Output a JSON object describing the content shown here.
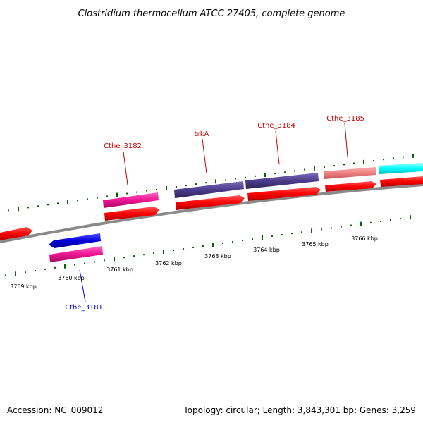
{
  "title": "Clostridium thermocellum ATCC 27405, complete genome",
  "footer": {
    "accession": "Accession: NC_009012",
    "summary": "Topology: circular; Length: 3,843,301 bp; Genes: 3,259"
  },
  "positions": [
    {
      "label": "3759 kbp"
    },
    {
      "label": "3760 kbp"
    },
    {
      "label": "3761 kbp"
    },
    {
      "label": "3762 kbp"
    },
    {
      "label": "3763 kbp"
    },
    {
      "label": "3764 kbp"
    },
    {
      "label": "3765 kbp"
    },
    {
      "label": "3766 kbp"
    }
  ],
  "gene_labels": [
    {
      "text": "Cthe_3182",
      "color": "#cc0000"
    },
    {
      "text": "trkA",
      "color": "#cc0000"
    },
    {
      "text": "Cthe_3184",
      "color": "#cc0000"
    },
    {
      "text": "Cthe_3185",
      "color": "#cc0000"
    },
    {
      "text": "Cthe_3181",
      "color": "#0000cc"
    }
  ],
  "colors": {
    "cds": "#ff0000",
    "backbone": "#808080",
    "ticks": "#006600",
    "gene_pink": "#ee1493",
    "gene_purple": "#4b3c8c",
    "gene_salmon": "#f08080",
    "gene_cyan": "#00ffff",
    "gene_blue": "#0000dd"
  }
}
